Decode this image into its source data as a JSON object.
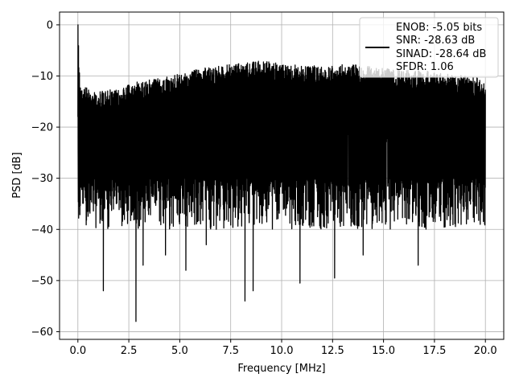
{
  "chart_data": {
    "type": "line",
    "xlabel": "Frequency [MHz]",
    "ylabel": "PSD [dB]",
    "xlim": [
      -0.9,
      20.9
    ],
    "ylim": [
      -61.5,
      2.5
    ],
    "xticks": [
      0.0,
      2.5,
      5.0,
      7.5,
      10.0,
      12.5,
      15.0,
      17.5,
      20.0
    ],
    "xtick_labels": [
      "0.0",
      "2.5",
      "5.0",
      "7.5",
      "10.0",
      "12.5",
      "15.0",
      "17.5",
      "20.0"
    ],
    "yticks": [
      0,
      -10,
      -20,
      -30,
      -40,
      -50,
      -60
    ],
    "ytick_labels": [
      "0",
      "−10",
      "−20",
      "−30",
      "−40",
      "−50",
      "−60"
    ],
    "grid": true,
    "legend_position": "top-right",
    "series": [
      {
        "color": "#000000",
        "description": "dense noise-like power spectral density trace",
        "x_range": [
          0,
          20
        ],
        "peak": {
          "x": 0.0,
          "y": 0
        },
        "upper_envelope": {
          "x": [
            0,
            0.1,
            0.2,
            1,
            2,
            3,
            4,
            5,
            6,
            7,
            8,
            9,
            10,
            11,
            12,
            13,
            14,
            15,
            16,
            17,
            18,
            19,
            20
          ],
          "y": [
            0,
            -11,
            -12,
            -13,
            -12.5,
            -11,
            -10.5,
            -9.5,
            -8.5,
            -8,
            -7.5,
            -7,
            -7.5,
            -8,
            -8,
            -7.5,
            -8,
            -8.5,
            -8.5,
            -9,
            -9.5,
            -10,
            -10.5
          ]
        },
        "typical_floor": -38,
        "deep_nulls": [
          {
            "x": 1.25,
            "y": -52
          },
          {
            "x": 2.85,
            "y": -58
          },
          {
            "x": 3.2,
            "y": -47
          },
          {
            "x": 5.3,
            "y": -48
          },
          {
            "x": 8.2,
            "y": -54
          },
          {
            "x": 8.6,
            "y": -52
          },
          {
            "x": 10.9,
            "y": -50.5
          },
          {
            "x": 12.6,
            "y": -49.5
          },
          {
            "x": 14.0,
            "y": -45
          },
          {
            "x": 16.7,
            "y": -47
          },
          {
            "x": 4.3,
            "y": -45
          },
          {
            "x": 6.3,
            "y": -43
          }
        ]
      }
    ],
    "legend": {
      "lines": [
        "ENOB: -5.05 bits",
        "SNR: -28.63 dB",
        "SINAD: -28.64 dB",
        "SFDR: 1.06"
      ]
    }
  }
}
